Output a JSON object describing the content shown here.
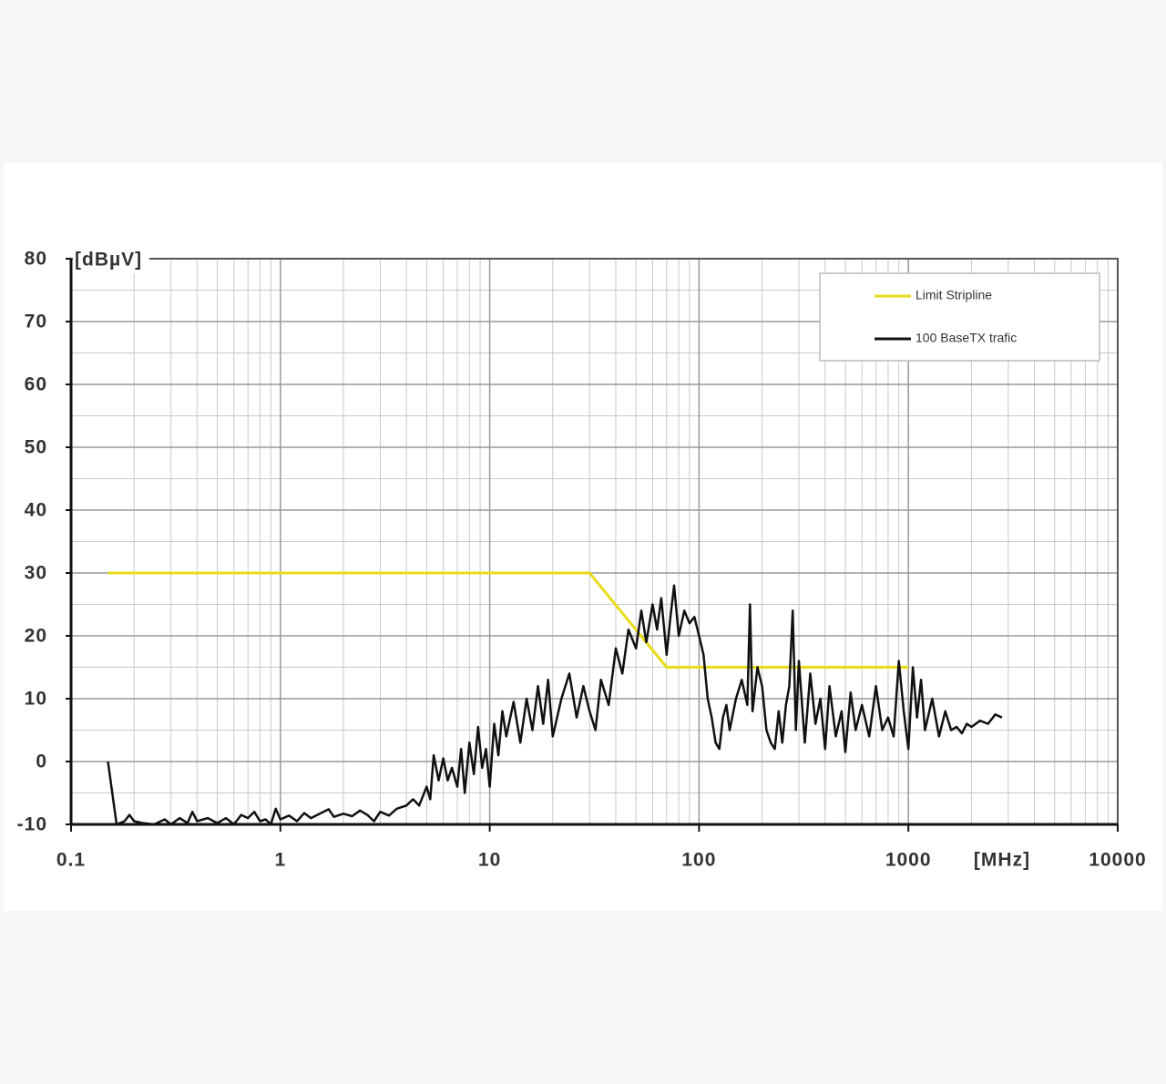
{
  "chart_data": {
    "type": "line",
    "x_label": "[MHz]",
    "y_label": "[dBµV]",
    "xscale": "log",
    "xlim": [
      0.1,
      10000
    ],
    "xticks": [
      0.1,
      1,
      10,
      100,
      1000,
      10000
    ],
    "ylim": [
      -10,
      80
    ],
    "yticks": [
      -10,
      0,
      10,
      20,
      30,
      40,
      50,
      60,
      70,
      80
    ],
    "grid": true,
    "minor_grid": true,
    "legend": "upper right",
    "series": [
      {
        "name": "Limit Stripline",
        "color": "#e8dc1a",
        "x": [
          0.15,
          30,
          70,
          1000
        ],
        "values": [
          30,
          30,
          15,
          15
        ]
      },
      {
        "name": "100 BaseTX trafic",
        "color": "#111111",
        "x": [
          0.15,
          0.165,
          0.18,
          0.19,
          0.2,
          0.22,
          0.25,
          0.28,
          0.3,
          0.33,
          0.36,
          0.38,
          0.4,
          0.45,
          0.5,
          0.55,
          0.6,
          0.65,
          0.7,
          0.75,
          0.8,
          0.85,
          0.9,
          0.95,
          1.0,
          1.1,
          1.2,
          1.3,
          1.4,
          1.5,
          1.7,
          1.8,
          2,
          2.2,
          2.4,
          2.6,
          2.8,
          3,
          3.3,
          3.6,
          4,
          4.3,
          4.6,
          5,
          5.2,
          5.4,
          5.7,
          6,
          6.3,
          6.6,
          7,
          7.3,
          7.6,
          8,
          8.4,
          8.8,
          9.2,
          9.6,
          10,
          10.5,
          11,
          11.5,
          12,
          13,
          14,
          15,
          16,
          17,
          18,
          19,
          20,
          22,
          24,
          26,
          28,
          30,
          32,
          34,
          37,
          40,
          43,
          46,
          50,
          53,
          56,
          60,
          63,
          66,
          70,
          73,
          76,
          80,
          85,
          90,
          95,
          100,
          105,
          110,
          115,
          120,
          125,
          130,
          135,
          140,
          150,
          160,
          170,
          175,
          180,
          190,
          200,
          210,
          220,
          230,
          240,
          250,
          260,
          270,
          280,
          290,
          300,
          320,
          340,
          360,
          380,
          400,
          420,
          450,
          480,
          500,
          530,
          560,
          600,
          650,
          700,
          750,
          800,
          850,
          900,
          950,
          1000,
          1050,
          1100,
          1150,
          1200,
          1300,
          1400,
          1500,
          1600,
          1700,
          1800,
          1900,
          2000,
          2200,
          2400,
          2600,
          2800
        ],
        "values": [
          0,
          -10,
          -9.5,
          -8.5,
          -9.5,
          -9.8,
          -10,
          -9.2,
          -10,
          -9,
          -9.8,
          -8,
          -9.5,
          -9,
          -9.8,
          -9,
          -10,
          -8.5,
          -9,
          -8,
          -9.5,
          -9.2,
          -10,
          -7.5,
          -9.2,
          -8.6,
          -9.5,
          -8.2,
          -9,
          -8.5,
          -7.6,
          -8.8,
          -8.3,
          -8.7,
          -7.8,
          -8.5,
          -9.5,
          -8,
          -8.6,
          -7.5,
          -7,
          -6,
          -7,
          -4,
          -6,
          1,
          -3,
          0.5,
          -3,
          -1,
          -4,
          2,
          -5,
          3,
          -2,
          5.5,
          -1,
          2,
          -4,
          6,
          1,
          8,
          4,
          9.5,
          3,
          10,
          5,
          12,
          6,
          13,
          4,
          10,
          14,
          7,
          12,
          8,
          5,
          13,
          9,
          18,
          14,
          21,
          18,
          24,
          19,
          25,
          21,
          26,
          17,
          23,
          28,
          20,
          24,
          22,
          23,
          20,
          17,
          10,
          7,
          3,
          2,
          7,
          9,
          5,
          10,
          13,
          9,
          25,
          8,
          15,
          12,
          5,
          3,
          2,
          8,
          3,
          9,
          12,
          24,
          5,
          16,
          3,
          14,
          6,
          10,
          2,
          12,
          4,
          8,
          1.5,
          11,
          5,
          9,
          4,
          12,
          5,
          7,
          4,
          16,
          8,
          2,
          15,
          7,
          13,
          5,
          10,
          4,
          8,
          5,
          5.5,
          4.5,
          6,
          5.5,
          6.5,
          6,
          7.5,
          7
        ]
      }
    ]
  }
}
